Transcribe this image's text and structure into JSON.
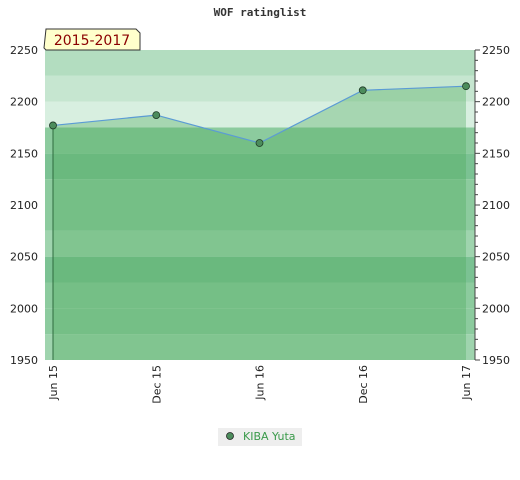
{
  "chart_data": {
    "type": "area",
    "title": "WOF ratinglist",
    "period_label": "2015-2017",
    "x_tick_labels": [
      "Jun 15",
      "Dec 15",
      "Jun 16",
      "Dec 16",
      "Jun 17"
    ],
    "y_ticks": [
      1950,
      2000,
      2050,
      2100,
      2150,
      2200,
      2250
    ],
    "ylim": [
      1950,
      2250
    ],
    "y_axis_both_sides": true,
    "grid": true,
    "legend_position": "bottom-center",
    "series": [
      {
        "name": "KIBA Yuta",
        "x": [
          "Jun 15",
          "Dec 15",
          "Jun 16",
          "Dec 16",
          "Jun 17"
        ],
        "values": [
          2177,
          2187,
          2160,
          2211,
          2215
        ],
        "line_color": "#5b9bd5",
        "fill_color": "#4aaa5a",
        "marker_color": "#4c8c5c"
      }
    ],
    "band_colors": [
      "#9fd4ae",
      "#8ccb9e",
      "#8ccb9e",
      "#7bc293",
      "#9fd4ae",
      "#8ccb9e",
      "#8ccb9e",
      "#7bc293",
      "#8ccb9e",
      "#d8efe0",
      "#c6e6d0",
      "#b3ddc0"
    ]
  }
}
